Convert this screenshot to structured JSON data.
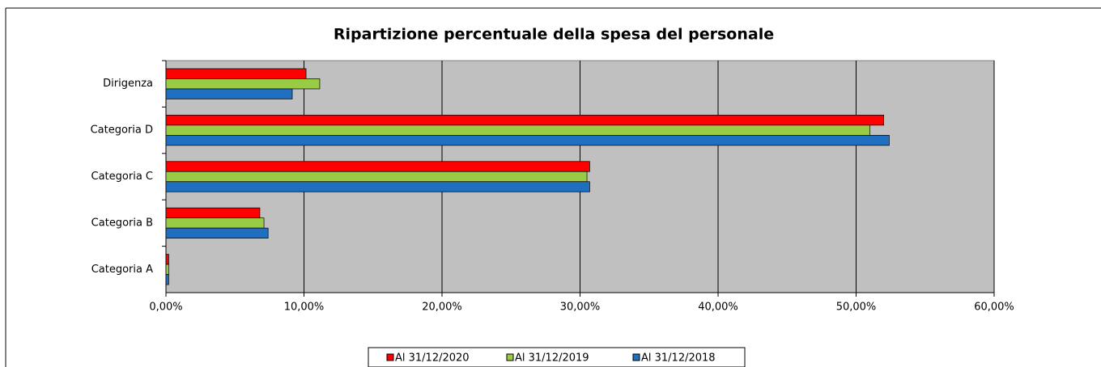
{
  "chart_data": {
    "type": "bar",
    "orientation": "horizontal",
    "title": "Ripartizione percentuale della spesa del personale",
    "categories": [
      "Dirigenza",
      "Categoria D",
      "Categoria C",
      "Categoria B",
      "Categoria A"
    ],
    "series": [
      {
        "name": "Al 31/12/2020",
        "color": "#ff0000",
        "values": [
          10.15,
          52.0,
          30.7,
          6.8,
          0.2
        ]
      },
      {
        "name": "Al 31/12/2019",
        "color": "#99cc44",
        "values": [
          11.14,
          51.0,
          30.5,
          7.1,
          0.2
        ]
      },
      {
        "name": "Al 31/12/2018",
        "color": "#1f6fc0",
        "values": [
          9.15,
          52.4,
          30.7,
          7.4,
          0.2
        ]
      }
    ],
    "xlim": [
      0,
      60
    ],
    "xticks": [
      {
        "value": 0,
        "label": "0,00%"
      },
      {
        "value": 10,
        "label": "10,00%"
      },
      {
        "value": 20,
        "label": "20,00%"
      },
      {
        "value": 30,
        "label": "30,00%"
      },
      {
        "value": 40,
        "label": "40,00%"
      },
      {
        "value": 50,
        "label": "50,00%"
      },
      {
        "value": 60,
        "label": "60,00%"
      }
    ],
    "grid": true,
    "legend": "bottom"
  }
}
